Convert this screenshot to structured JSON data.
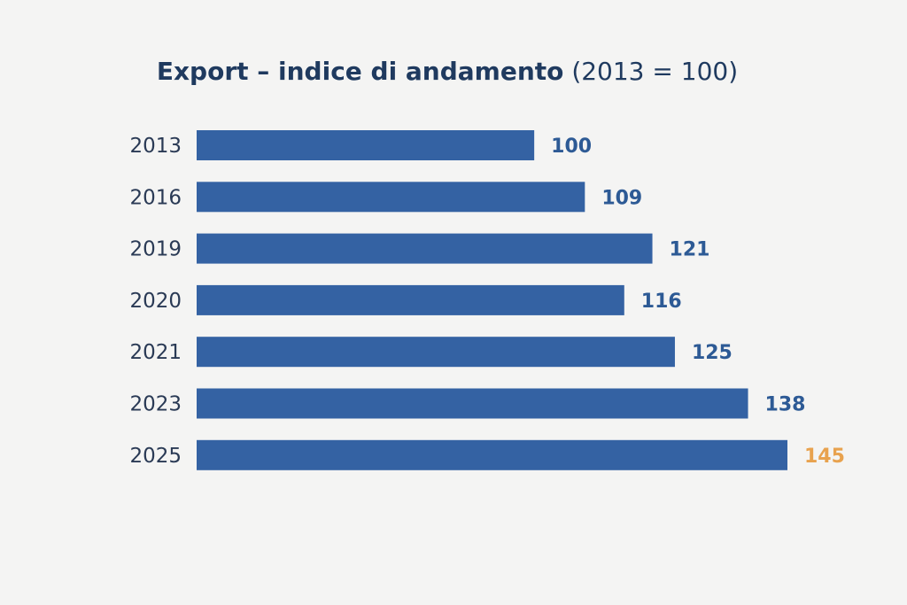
{
  "chart_data": {
    "type": "bar",
    "orientation": "horizontal",
    "title_main": "Export – indice di andamento",
    "title_suffix": "(2013 = 100)",
    "categories": [
      "2013",
      "2016",
      "2019",
      "2020",
      "2021",
      "2023",
      "2025"
    ],
    "values": [
      100,
      109,
      121,
      116,
      125,
      138,
      145
    ],
    "highlight_index": 6,
    "xlabel": "",
    "ylabel": "",
    "grid": false,
    "colors": {
      "bar": "#3462a3",
      "label": "#2d5a95",
      "highlight_label": "#e8a24e",
      "tick": "#2a3a55",
      "title": "#1f3a5f"
    }
  }
}
